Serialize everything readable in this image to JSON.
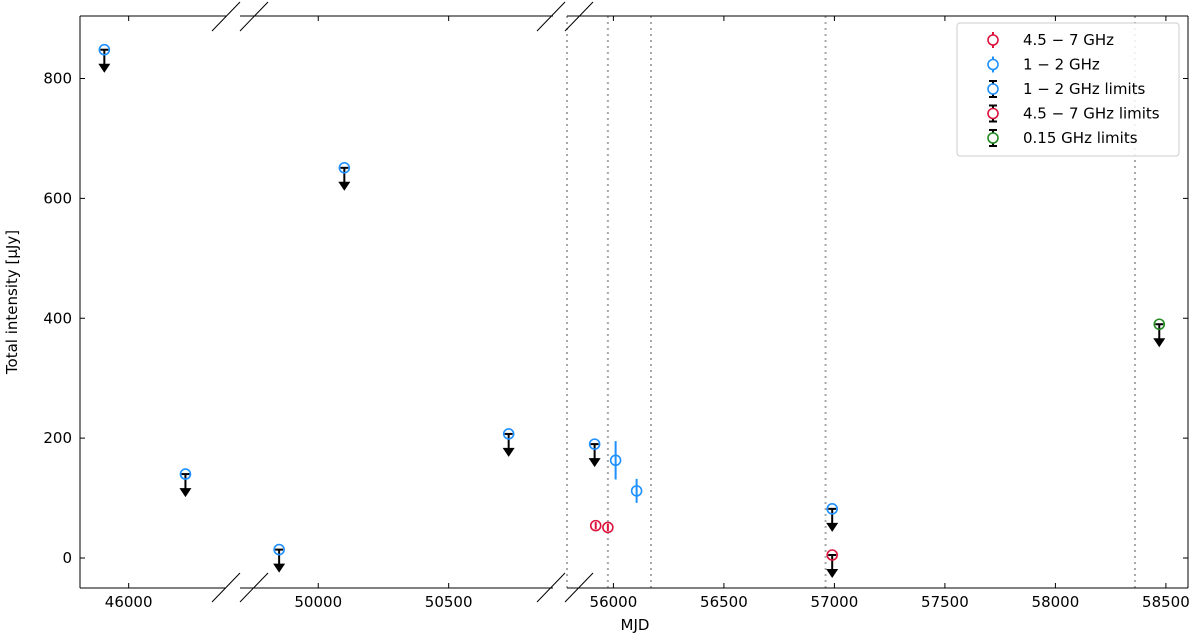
{
  "chart_data": {
    "type": "scatter",
    "xlabel": "MJD",
    "ylabel": "Total intensity [μJy]",
    "ylim": [
      -50,
      900
    ],
    "yticks": [
      0,
      200,
      400,
      600,
      800
    ],
    "x_broken_axis": true,
    "x_segments": [
      {
        "range": [
          45700,
          46600
        ],
        "ticks": [
          46000
        ]
      },
      {
        "range": [
          49700,
          50900
        ],
        "ticks": [
          50000,
          50500
        ]
      },
      {
        "range": [
          55790,
          58600
        ],
        "ticks": [
          56000,
          56500,
          57000,
          57500,
          58000,
          58500
        ]
      }
    ],
    "vertical_lines": [
      55790,
      55975,
      56170,
      56960,
      58360
    ],
    "legend_position": "top-right",
    "series": [
      {
        "name": "4.5 − 7 GHz",
        "color": "#dc143c",
        "kind": "detection",
        "points": [
          {
            "x": 55920,
            "y": 54,
            "yerr": 6
          },
          {
            "x": 55975,
            "y": 51,
            "yerr": 6
          }
        ]
      },
      {
        "name": "1 − 2 GHz",
        "color": "#1e90ff",
        "kind": "detection",
        "points": [
          {
            "x": 56010,
            "y": 163,
            "yerr": 32
          },
          {
            "x": 56105,
            "y": 112,
            "yerr": 20
          }
        ]
      },
      {
        "name": "1 − 2 GHz limits",
        "color": "#1e90ff",
        "kind": "upper_limit",
        "points": [
          {
            "x": 45850,
            "y": 848
          },
          {
            "x": 46350,
            "y": 140
          },
          {
            "x": 49850,
            "y": 14
          },
          {
            "x": 50100,
            "y": 651
          },
          {
            "x": 50730,
            "y": 207
          },
          {
            "x": 55915,
            "y": 190
          },
          {
            "x": 56990,
            "y": 82
          }
        ]
      },
      {
        "name": "4.5 − 7 GHz limits",
        "color": "#dc143c",
        "kind": "upper_limit",
        "points": [
          {
            "x": 56990,
            "y": 5
          }
        ]
      },
      {
        "name": "0.15 GHz limits",
        "color": "#228b22",
        "kind": "upper_limit",
        "points": [
          {
            "x": 58470,
            "y": 390
          }
        ]
      }
    ]
  }
}
